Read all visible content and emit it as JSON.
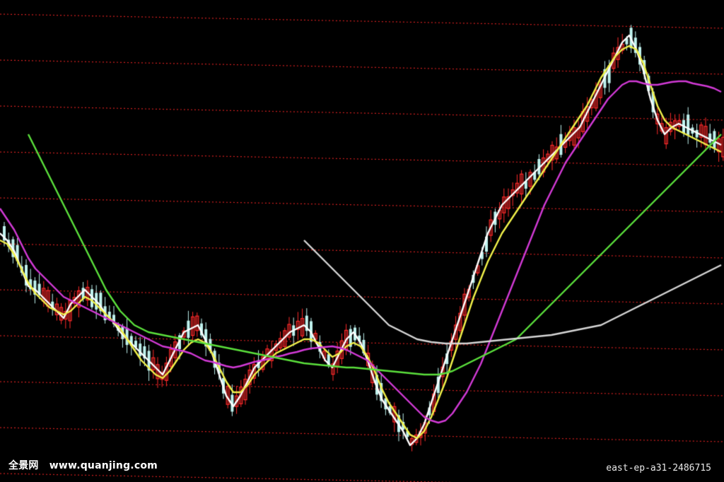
{
  "watermark": {
    "site_name": "全景网",
    "site_url": "www.quanjing.com",
    "image_code": "east-ep-a31-2486715"
  },
  "colors": {
    "background": "#000000",
    "grid": "#d42020",
    "up_candle": "#ff2a2a",
    "down_candle": "#bff2ee",
    "ma_white": "#ffffff",
    "ma_yellow": "#f2f24a",
    "ma_magenta": "#d23ad6",
    "ma_green": "#5be03c",
    "ma_gray": "#d6d6d6"
  },
  "chart_data": {
    "type": "line",
    "description_kind": "candlestick",
    "xlabel": "",
    "ylabel": "",
    "grid": true,
    "x": [
      0,
      10,
      20,
      30,
      40,
      50,
      60,
      70,
      80,
      90,
      100,
      110,
      120,
      130,
      140,
      150,
      160,
      170,
      180,
      190,
      200,
      210,
      220,
      230,
      240,
      250,
      260,
      270,
      280,
      290,
      300,
      310,
      320,
      330,
      340,
      350,
      360,
      370,
      380,
      390,
      400,
      410,
      420,
      430,
      440,
      450,
      460,
      470,
      480,
      490,
      500,
      510,
      520,
      530,
      540,
      550,
      560,
      570,
      580,
      590,
      600,
      610,
      620,
      630,
      640,
      650,
      660,
      670,
      680,
      690,
      700,
      710,
      720,
      730,
      740,
      750,
      760,
      770,
      780,
      790,
      800,
      810,
      820,
      830,
      840,
      850,
      860,
      870,
      880,
      890,
      900,
      910,
      920,
      930,
      940,
      950,
      960,
      970,
      980,
      990,
      1000,
      1010,
      1020
    ],
    "ylim": [
      0,
      682
    ],
    "series": [
      {
        "key": "white",
        "color": "#ffffff",
        "values": [
          330,
          340,
          355,
          380,
          405,
          410,
          420,
          430,
          440,
          450,
          430,
          420,
          410,
          420,
          430,
          445,
          455,
          470,
          480,
          490,
          500,
          510,
          520,
          530,
          510,
          490,
          470,
          465,
          460,
          480,
          500,
          530,
          560,
          575,
          560,
          540,
          520,
          510,
          500,
          490,
          480,
          470,
          465,
          460,
          470,
          490,
          510,
          520,
          500,
          480,
          470,
          485,
          510,
          540,
          565,
          580,
          595,
          610,
          630,
          620,
          600,
          570,
          540,
          510,
          480,
          450,
          420,
          390,
          360,
          330,
          310,
          290,
          280,
          270,
          260,
          250,
          240,
          230,
          220,
          210,
          200,
          190,
          180,
          160,
          140,
          120,
          100,
          80,
          60,
          50,
          70,
          100,
          140,
          170,
          190,
          180,
          175,
          180,
          185,
          190,
          195,
          200,
          205
        ]
      },
      {
        "key": "yellow",
        "color": "#f2f24a",
        "values": [
          340,
          345,
          360,
          380,
          400,
          415,
          425,
          435,
          440,
          445,
          440,
          430,
          420,
          425,
          435,
          445,
          455,
          465,
          480,
          495,
          510,
          520,
          530,
          535,
          525,
          510,
          495,
          485,
          480,
          485,
          500,
          520,
          540,
          555,
          555,
          545,
          530,
          520,
          510,
          500,
          495,
          490,
          485,
          480,
          480,
          485,
          495,
          505,
          500,
          490,
          485,
          490,
          505,
          525,
          550,
          570,
          585,
          600,
          615,
          620,
          610,
          590,
          565,
          540,
          510,
          480,
          450,
          420,
          395,
          370,
          350,
          330,
          315,
          300,
          285,
          270,
          255,
          240,
          225,
          210,
          195,
          180,
          165,
          150,
          130,
          110,
          95,
          80,
          70,
          65,
          70,
          90,
          120,
          150,
          170,
          180,
          185,
          190,
          195,
          200,
          205,
          210,
          215
        ]
      },
      {
        "key": "magenta",
        "color": "#d23ad6",
        "values": [
          295,
          310,
          325,
          345,
          365,
          380,
          390,
          400,
          410,
          420,
          425,
          430,
          435,
          440,
          445,
          450,
          455,
          460,
          465,
          470,
          475,
          480,
          485,
          490,
          492,
          495,
          497,
          500,
          505,
          510,
          512,
          515,
          518,
          520,
          518,
          515,
          512,
          510,
          508,
          505,
          503,
          500,
          498,
          495,
          493,
          492,
          491,
          490,
          492,
          495,
          500,
          505,
          510,
          520,
          530,
          540,
          550,
          560,
          570,
          580,
          590,
          595,
          598,
          595,
          585,
          570,
          555,
          535,
          515,
          490,
          465,
          440,
          415,
          390,
          365,
          340,
          315,
          290,
          270,
          250,
          230,
          215,
          200,
          185,
          170,
          155,
          140,
          130,
          120,
          115,
          115,
          118,
          120,
          120,
          118,
          116,
          115,
          115,
          118,
          120,
          122,
          125,
          130
        ]
      },
      {
        "key": "green",
        "color": "#5be03c",
        "values": [
          null,
          null,
          null,
          null,
          190,
          210,
          230,
          250,
          270,
          290,
          310,
          330,
          350,
          370,
          390,
          410,
          425,
          440,
          450,
          460,
          465,
          470,
          472,
          474,
          476,
          478,
          480,
          482,
          484,
          486,
          488,
          490,
          492,
          494,
          496,
          498,
          500,
          502,
          504,
          506,
          508,
          510,
          512,
          514,
          515,
          516,
          517,
          518,
          519,
          520,
          520,
          521,
          522,
          523,
          524,
          525,
          526,
          527,
          528,
          529,
          530,
          530,
          530,
          528,
          525,
          520,
          515,
          510,
          505,
          500,
          495,
          490,
          485,
          480,
          470,
          460,
          450,
          440,
          430,
          420,
          410,
          400,
          390,
          380,
          370,
          360,
          350,
          340,
          330,
          320,
          310,
          300,
          290,
          280,
          270,
          260,
          250,
          240,
          230,
          220,
          210,
          200,
          190
        ]
      },
      {
        "key": "gray",
        "color": "#d6d6d6",
        "values": [
          null,
          null,
          null,
          null,
          null,
          null,
          null,
          null,
          null,
          null,
          null,
          null,
          null,
          null,
          null,
          null,
          null,
          null,
          null,
          null,
          null,
          null,
          null,
          null,
          null,
          null,
          null,
          null,
          null,
          null,
          null,
          null,
          null,
          null,
          null,
          null,
          null,
          null,
          null,
          null,
          null,
          null,
          null,
          340,
          350,
          360,
          370,
          380,
          390,
          400,
          410,
          420,
          430,
          440,
          450,
          460,
          465,
          470,
          475,
          480,
          482,
          484,
          485,
          486,
          486,
          486,
          486,
          485,
          484,
          483,
          482,
          481,
          480,
          479,
          478,
          477,
          476,
          475,
          474,
          472,
          470,
          468,
          466,
          464,
          462,
          460,
          455,
          450,
          445,
          440,
          435,
          430,
          425,
          420,
          415,
          410,
          405,
          400,
          395,
          390,
          385,
          380,
          375
        ]
      }
    ],
    "grid_lines": 11
  }
}
